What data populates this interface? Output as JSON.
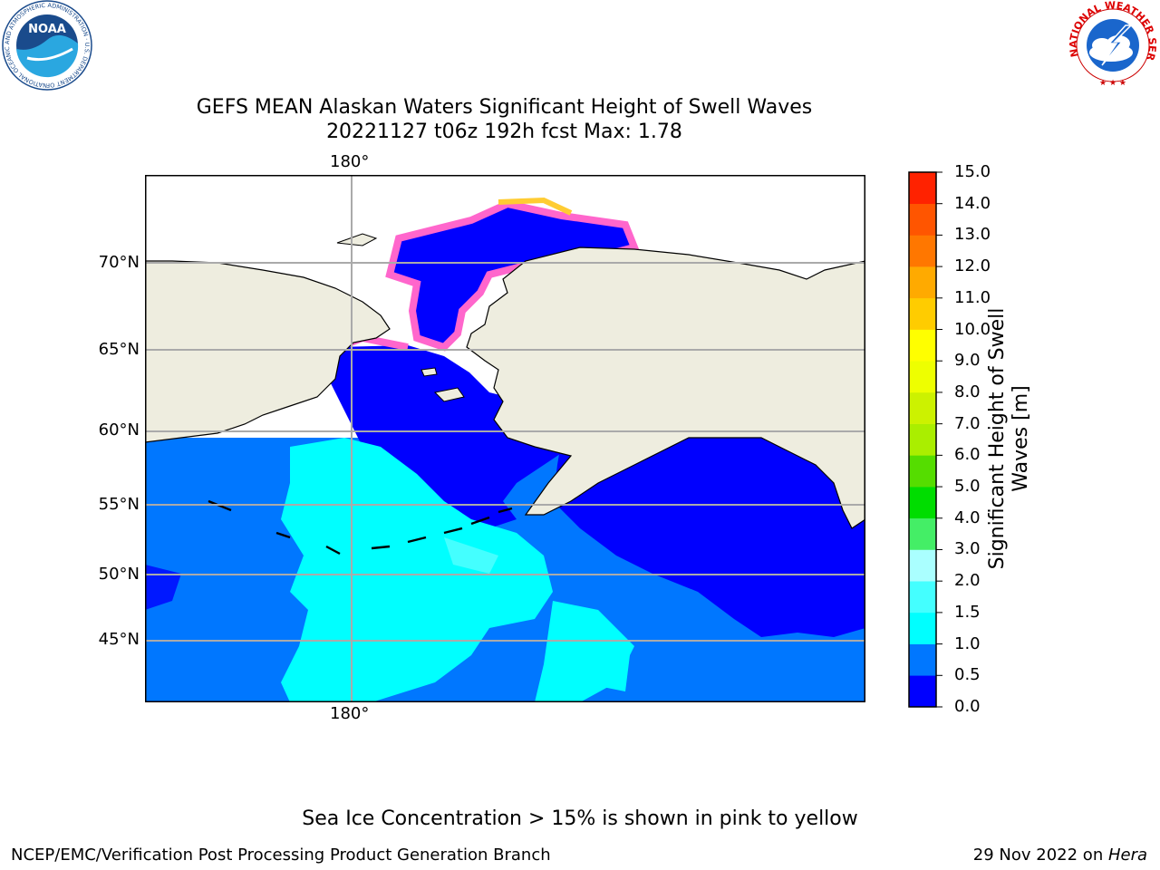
{
  "title": {
    "line1": "GEFS MEAN Alaskan Waters Significant Height of Swell Waves",
    "line2": "20221127 t06z 192h fcst   Max: 1.78"
  },
  "map": {
    "lon_label_top": "180°",
    "lon_label_bottom": "180°",
    "lat_labels": [
      "70°N",
      "65°N",
      "60°N",
      "55°N",
      "50°N",
      "45°N"
    ],
    "land_color": "#eeeddf",
    "ice_colors": [
      "#ff66cc",
      "#ffcc33",
      "#ffff00"
    ]
  },
  "colorbar": {
    "label": "Significant Height of Swell Waves [m]",
    "ticks": [
      "0.0",
      "0.5",
      "1.0",
      "1.5",
      "2.0",
      "3.0",
      "4.0",
      "5.0",
      "6.0",
      "7.0",
      "8.0",
      "9.0",
      "10.0",
      "11.0",
      "12.0",
      "13.0",
      "14.0",
      "15.0"
    ],
    "colors": [
      "#0000ff",
      "#0077ff",
      "#00ffff",
      "#44ffff",
      "#aaffff",
      "#44ee66",
      "#00dd00",
      "#55dd00",
      "#aaee00",
      "#ccf200",
      "#eeff00",
      "#ffff00",
      "#ffcc00",
      "#ffaa00",
      "#ff7700",
      "#ff5500",
      "#ff2200"
    ]
  },
  "logos": {
    "noaa": "NOAA",
    "nws": "NATIONAL WEATHER SERVICE",
    "noaa_ring": "NATIONAL OCEANIC AND ATMOSPHERIC ADMINISTRATION · U.S. DEPARTMENT OF COMMERCE"
  },
  "footnote": "Sea Ice Concentration > 15% is shown in pink to yellow",
  "footer": {
    "left": "NCEP/EMC/Verification Post Processing Product Generation Branch",
    "right_prefix": "29 Nov 2022 on ",
    "right_host": "Hera"
  }
}
